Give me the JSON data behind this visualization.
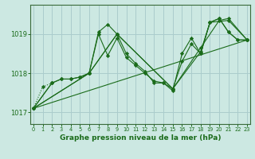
{
  "background_color": "#cce8e2",
  "grid_color": "#aacccc",
  "line_color": "#1a6b1a",
  "title": "Graphe pression niveau de la mer (hPa)",
  "xlim": [
    -0.3,
    23.3
  ],
  "ylim": [
    1016.7,
    1019.75
  ],
  "yticks": [
    1017,
    1018,
    1019
  ],
  "xticks": [
    0,
    1,
    2,
    3,
    4,
    5,
    6,
    7,
    8,
    9,
    10,
    11,
    12,
    13,
    14,
    15,
    16,
    17,
    18,
    19,
    20,
    21,
    22,
    23
  ],
  "series": [
    {
      "x": [
        0,
        1,
        2
      ],
      "y": [
        1017.1,
        1017.65,
        1017.75
      ],
      "linestyle": "dotted",
      "marker": true
    },
    {
      "x": [
        0,
        2,
        3,
        4,
        5,
        6,
        7,
        8,
        9,
        10,
        11,
        12,
        13,
        14,
        15,
        16,
        17,
        18,
        19,
        20,
        21,
        22,
        23
      ],
      "y": [
        1017.1,
        1017.75,
        1017.85,
        1017.85,
        1017.9,
        1018.0,
        1019.05,
        1019.25,
        1019.0,
        1018.5,
        1018.25,
        1018.05,
        1017.75,
        1017.75,
        1017.6,
        1018.3,
        1018.75,
        1018.5,
        1019.3,
        1019.4,
        1019.05,
        1018.85,
        1018.85
      ],
      "linestyle": "solid",
      "marker": true
    },
    {
      "x": [
        0,
        2,
        3,
        4,
        5,
        6,
        7,
        8,
        9,
        10,
        11,
        12,
        13,
        14,
        15,
        16,
        17,
        18,
        19,
        20,
        21,
        22,
        23
      ],
      "y": [
        1017.1,
        1017.75,
        1017.85,
        1017.85,
        1017.9,
        1018.0,
        1019.0,
        1018.45,
        1018.9,
        1018.4,
        1018.2,
        1018.0,
        1017.8,
        1017.75,
        1017.55,
        1018.5,
        1018.9,
        1018.5,
        1019.3,
        1019.4,
        1019.05,
        1018.85,
        1018.85
      ],
      "linestyle": "solid",
      "marker": true
    },
    {
      "comment": "diagonal line 1 - from 0 to 23 via 6,9,15,18,21",
      "x": [
        0,
        6,
        9,
        15,
        18,
        20,
        21,
        23
      ],
      "y": [
        1017.1,
        1018.0,
        1019.0,
        1017.6,
        1018.65,
        1019.35,
        1019.4,
        1018.85
      ],
      "linestyle": "solid",
      "marker": true
    },
    {
      "x": [
        0,
        6,
        9,
        15,
        18,
        19,
        21,
        23
      ],
      "y": [
        1017.1,
        1018.0,
        1019.0,
        1017.6,
        1018.55,
        1019.3,
        1019.35,
        1018.85
      ],
      "linestyle": "solid",
      "marker": true
    },
    {
      "x": [
        0,
        23
      ],
      "y": [
        1017.1,
        1018.85
      ],
      "linestyle": "solid",
      "marker": false
    }
  ]
}
